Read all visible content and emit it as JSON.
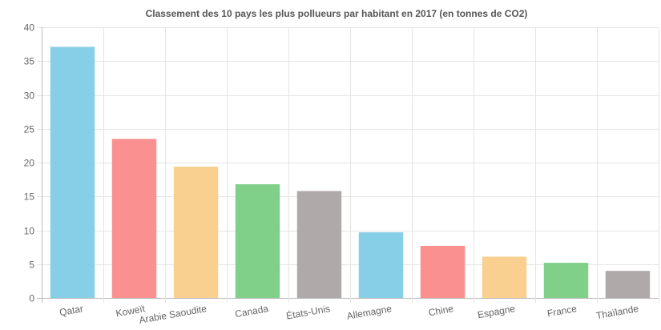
{
  "chart_data": {
    "type": "bar",
    "title": "Classement des 10 pays les plus pollueurs par habitant en 2017 (en tonnes de CO2)",
    "xlabel": "",
    "ylabel": "",
    "categories": [
      "Qatar",
      "Koweït",
      "Arabie Saoudite",
      "Canada",
      "États-Unis",
      "Allemagne",
      "Chine",
      "Espagne",
      "France",
      "Thaïlande"
    ],
    "values": [
      37.1,
      23.5,
      19.4,
      16.8,
      15.8,
      9.7,
      7.7,
      6.1,
      5.2,
      4.0
    ],
    "ylim": [
      0,
      40
    ],
    "yticks": [
      0,
      5,
      10,
      15,
      20,
      25,
      30,
      35,
      40
    ],
    "grid": true,
    "colors": [
      "#87cfe6",
      "#fb9090",
      "#f9d090",
      "#80d08a",
      "#b0a9a9",
      "#87cfe6",
      "#fb9090",
      "#f9d090",
      "#80d08a",
      "#b0a9a9"
    ]
  }
}
